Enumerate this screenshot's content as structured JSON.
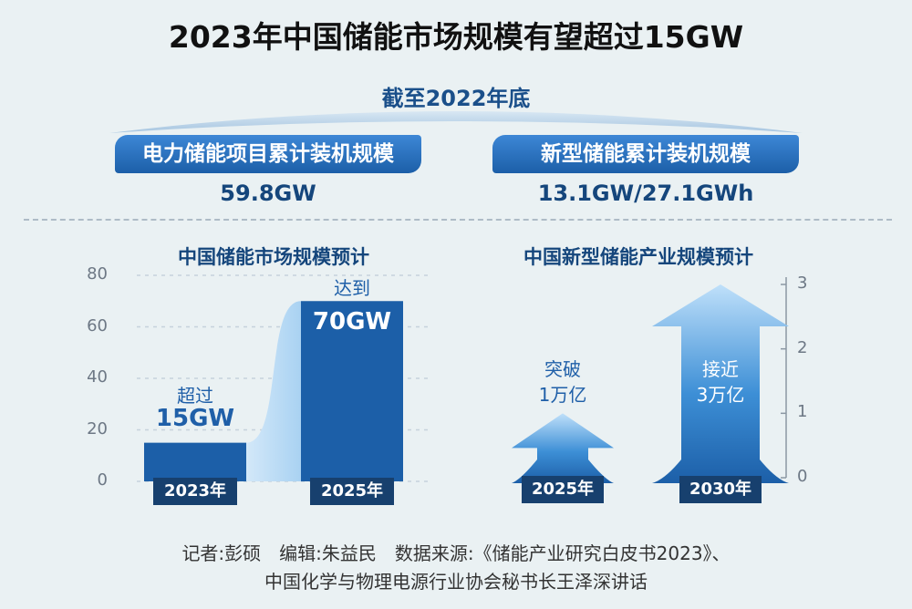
{
  "title": "2023年中国储能市场规模有望超过15GW",
  "subtitle": "截至2022年底",
  "summary": [
    {
      "label": "电力储能项目累计装机规模",
      "value": "59.8GW"
    },
    {
      "label": "新型储能累计装机规模",
      "value": "13.1GW/27.1GWh"
    }
  ],
  "colors": {
    "accent": "#1c5fa8",
    "dark_label": "#17406e",
    "light_bar": "#bcdcf6",
    "background": "#eaf1f3"
  },
  "chart_data": [
    {
      "type": "bar",
      "title": "中国储能市场规模预计",
      "categories": [
        "2023年",
        "2025年"
      ],
      "values": [
        15,
        70
      ],
      "unit": "GW",
      "ylim": [
        0,
        80
      ],
      "yticks": [
        "0",
        "20",
        "40",
        "60",
        "80"
      ],
      "labels": [
        {
          "note": "超过",
          "value": "15GW"
        },
        {
          "note": "达到",
          "value": "70GW"
        }
      ]
    },
    {
      "type": "bar",
      "title": "中国新型储能产业规模预计",
      "categories": [
        "2025年",
        "2030年"
      ],
      "values": [
        1,
        3
      ],
      "ylim": [
        0,
        3
      ],
      "yticks": [
        "0",
        "1",
        "2",
        "3"
      ],
      "labels": [
        {
          "note": "突破",
          "value": "1万亿"
        },
        {
          "note": "接近",
          "value": "3万亿"
        }
      ]
    }
  ],
  "footer": {
    "line1": "记者:彭硕　编辑:朱益民　数据来源:《储能产业研究白皮书2023》、",
    "line2": "中国化学与物理电源行业协会秘书长王泽深讲话"
  }
}
